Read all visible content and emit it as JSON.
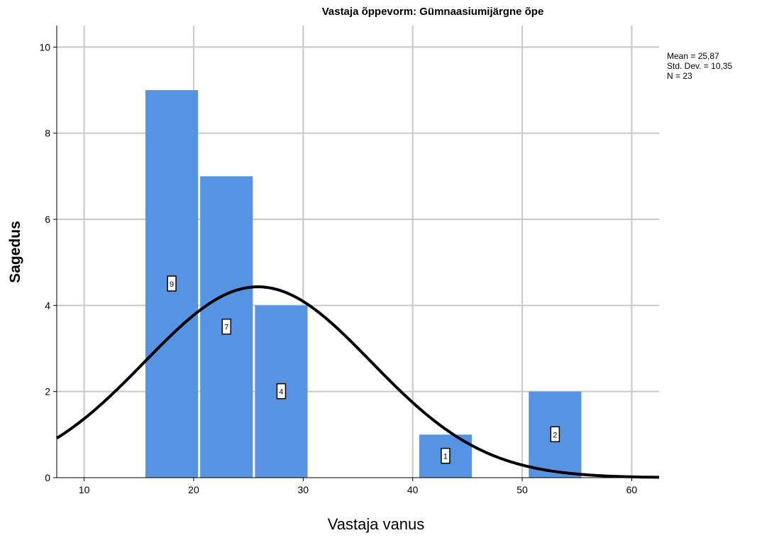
{
  "chart_data": {
    "type": "bar",
    "subtype": "histogram",
    "title": "Vastaja õppevorm: Gümnaasiumijärgne õpe",
    "xlabel": "Vastaja vanus",
    "ylabel": "Sagedus",
    "xlim": [
      7.5,
      62.5
    ],
    "ylim": [
      0,
      10.5
    ],
    "x_ticks": [
      "10",
      "20",
      "30",
      "40",
      "50",
      "60"
    ],
    "y_ticks": [
      "0",
      "2",
      "4",
      "6",
      "8",
      "10"
    ],
    "grid": true,
    "bar_color": "#5694E3",
    "bins": [
      {
        "x0": 15.5,
        "x1": 20.5,
        "value": 9,
        "label": "9"
      },
      {
        "x0": 20.5,
        "x1": 25.5,
        "value": 7,
        "label": "7"
      },
      {
        "x0": 25.5,
        "x1": 30.5,
        "value": 4,
        "label": "4"
      },
      {
        "x0": 40.5,
        "x1": 45.5,
        "value": 1,
        "label": "1"
      },
      {
        "x0": 50.5,
        "x1": 55.5,
        "value": 2,
        "label": "2"
      }
    ],
    "normal_curve": {
      "mean": 25.87,
      "sd": 10.35,
      "n": 23,
      "bin_width": 5
    },
    "stats_lines": [
      "Mean = 25,87",
      "Std. Dev. = 10,35",
      "N = 23"
    ]
  }
}
